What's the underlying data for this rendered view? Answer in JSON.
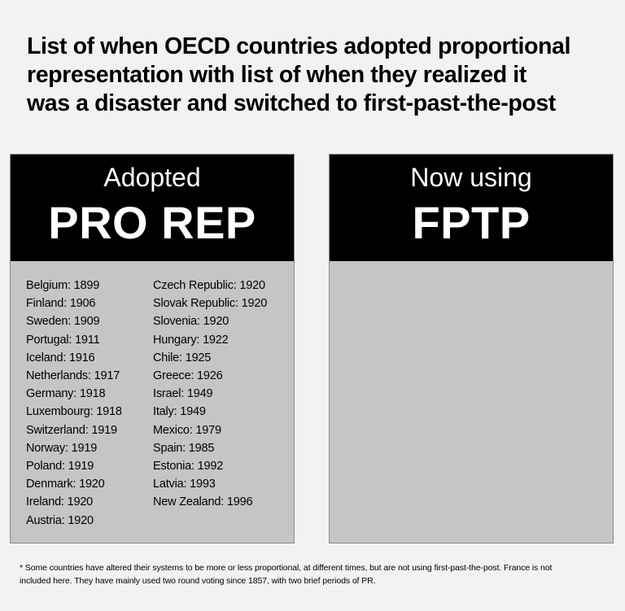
{
  "title": {
    "line1": "List of when OECD countries adopted proportional",
    "line2": "representation with list of when they realized it",
    "line3": "was a disaster and switched to first-past-the-post"
  },
  "left_panel": {
    "sub": "Adopted",
    "main": "PRO REP",
    "col1": [
      "Belgium: 1899",
      "Finland: 1906",
      "Sweden: 1909",
      "Portugal: 1911",
      "Iceland: 1916",
      "Netherlands: 1917",
      "Germany: 1918",
      "Luxembourg: 1918",
      "Switzerland: 1919",
      "Norway: 1919",
      "Poland: 1919",
      "Denmark: 1920",
      "Ireland: 1920",
      "Austria: 1920"
    ],
    "col2": [
      "Czech Republic: 1920",
      "Slovak Republic: 1920",
      "Slovenia: 1920",
      "Hungary: 1922",
      "Chile: 1925",
      "Greece: 1926",
      "Israel: 1949",
      "Italy: 1949",
      "Mexico: 1979",
      "Spain: 1985",
      "Estonia: 1992",
      "Latvia: 1993",
      "New Zealand: 1996"
    ]
  },
  "right_panel": {
    "sub": "Now using",
    "main": "FPTP"
  },
  "footnote": {
    "line1": "* Some countries have altered their systems to be more or less proportional, at different times,  but are not using first-past-the-post. France is not",
    "line2": "included here. They have mainly used two round voting since 1857, with two brief periods of PR."
  },
  "colors": {
    "background": "#f2f2f2",
    "header": "#000000",
    "panel": "#c5c5c5"
  }
}
